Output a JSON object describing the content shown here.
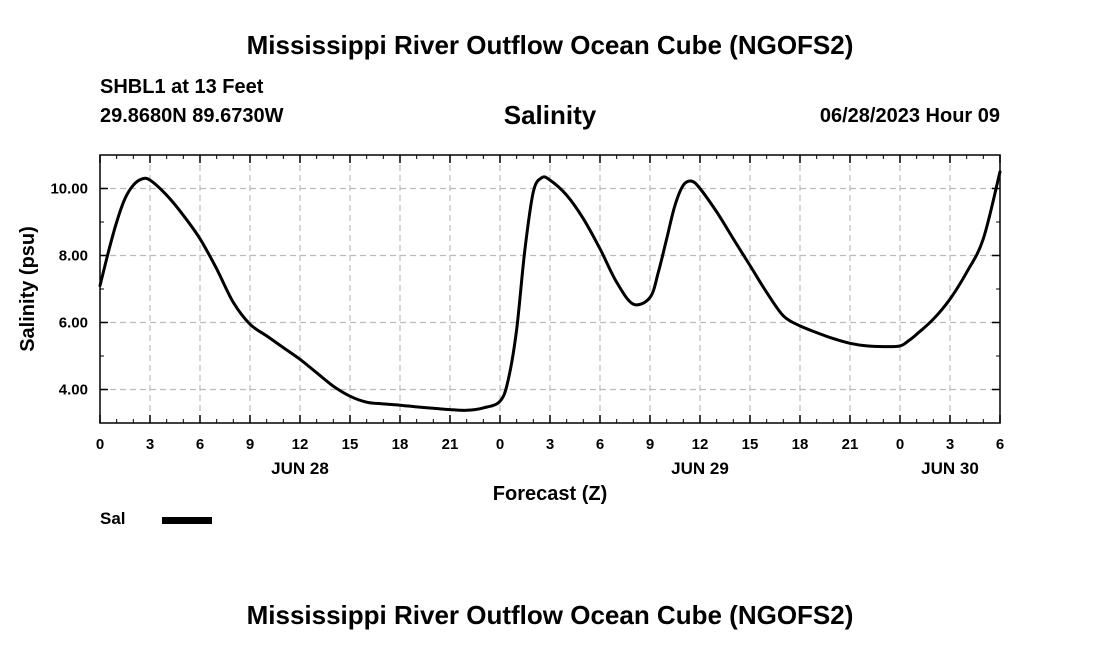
{
  "header": {
    "title": "Mississippi River Outflow Ocean Cube (NGOFS2)",
    "station": "SHBL1 at 13 Feet",
    "location": "29.8680N  89.6730W",
    "timestamp": "06/28/2023 Hour 09"
  },
  "footer": {
    "title": "Mississippi River Outflow Ocean Cube (NGOFS2)"
  },
  "chart_data": {
    "type": "line",
    "title": "Salinity",
    "xlabel": "Forecast (Z)",
    "ylabel": "Salinity (psu)",
    "xlim": [
      0,
      54
    ],
    "ylim": [
      3.0,
      11.0
    ],
    "grid": true,
    "legend_position": "bottom-left",
    "y_ticks": [
      4.0,
      6.0,
      8.0,
      10.0
    ],
    "y_tick_labels": [
      "4.00",
      "6.00",
      "8.00",
      "10.00"
    ],
    "x_ticks": [
      0,
      3,
      6,
      9,
      12,
      15,
      18,
      21,
      24,
      27,
      30,
      33,
      36,
      39,
      42,
      45,
      48,
      51,
      54
    ],
    "x_tick_labels": [
      "0",
      "3",
      "6",
      "9",
      "12",
      "15",
      "18",
      "21",
      "0",
      "3",
      "6",
      "9",
      "12",
      "15",
      "18",
      "21",
      "0",
      "3",
      "6"
    ],
    "day_labels": [
      {
        "x": 12,
        "label": "JUN 28"
      },
      {
        "x": 36,
        "label": "JUN 29"
      },
      {
        "x": 51,
        "label": "JUN 30"
      }
    ],
    "series": [
      {
        "name": "Sal",
        "color": "#000000",
        "x": [
          0,
          0.5,
          1,
          1.5,
          2,
          2.5,
          3,
          4,
          5,
          6,
          7,
          8,
          9,
          10,
          11,
          12,
          13,
          14,
          15,
          16,
          17,
          18,
          19,
          20,
          21,
          22,
          23,
          24,
          24.5,
          25,
          25.5,
          26,
          26.5,
          27,
          28,
          29,
          30,
          31,
          32,
          33,
          33.5,
          34,
          34.5,
          35,
          35.5,
          36,
          37,
          38,
          39,
          40,
          41,
          42,
          43,
          44,
          45,
          46,
          47,
          48,
          48.5,
          49,
          50,
          51,
          52,
          53,
          54
        ],
        "y": [
          7.1,
          8.1,
          9.0,
          9.7,
          10.1,
          10.28,
          10.25,
          9.8,
          9.2,
          8.5,
          7.6,
          6.6,
          5.95,
          5.6,
          5.25,
          4.9,
          4.5,
          4.1,
          3.8,
          3.62,
          3.57,
          3.53,
          3.48,
          3.44,
          3.4,
          3.38,
          3.45,
          3.65,
          4.3,
          5.8,
          8.2,
          9.9,
          10.32,
          10.25,
          9.8,
          9.1,
          8.2,
          7.2,
          6.55,
          6.75,
          7.5,
          8.5,
          9.5,
          10.1,
          10.22,
          10.0,
          9.3,
          8.5,
          7.7,
          6.9,
          6.2,
          5.9,
          5.7,
          5.52,
          5.38,
          5.3,
          5.28,
          5.3,
          5.45,
          5.65,
          6.1,
          6.7,
          7.5,
          8.5,
          10.5
        ]
      }
    ]
  }
}
